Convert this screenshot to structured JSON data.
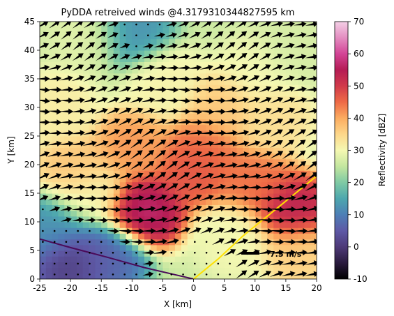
{
  "chart_data": {
    "type": "heatmap",
    "title": "PyDDA retreived winds @4.3179310344827595 km",
    "xlabel": "X [km]",
    "ylabel": "Y [km]",
    "xlim": [
      -25,
      20
    ],
    "ylim": [
      0,
      45
    ],
    "x_ticks": [
      -25,
      -20,
      -15,
      -10,
      -5,
      0,
      5,
      10,
      15,
      20
    ],
    "y_ticks": [
      0,
      5,
      10,
      15,
      20,
      25,
      30,
      35,
      40,
      45
    ],
    "colorbar": {
      "label": "Reflectivity [dBZ]",
      "range": [
        -10,
        70
      ],
      "ticks": [
        -10,
        0,
        10,
        20,
        30,
        40,
        50,
        60,
        70
      ],
      "colormap": "Spectral_r"
    },
    "reflectivity_features": [
      {
        "x": 2,
        "y": 22.5,
        "dbz": 45
      },
      {
        "x": -10,
        "y": 23,
        "dbz": 42
      },
      {
        "x": 10,
        "y": 17,
        "dbz": 45
      },
      {
        "x": -8,
        "y": 12,
        "dbz": 58
      },
      {
        "x": 0,
        "y": 19,
        "dbz": 48
      },
      {
        "x": 16,
        "y": 12,
        "dbz": 55
      },
      {
        "x": -19,
        "y": 19,
        "dbz": 38
      },
      {
        "x": -17,
        "y": 15,
        "dbz": 30
      },
      {
        "x": 17,
        "y": 5,
        "dbz": 36
      },
      {
        "x": -20,
        "y": 3,
        "dbz": 0
      },
      {
        "x": -14,
        "y": 4,
        "dbz": 6
      },
      {
        "x": -17,
        "y": 42,
        "dbz": 28
      },
      {
        "x": -10,
        "y": 43,
        "dbz": 12
      },
      {
        "x": -5,
        "y": 35,
        "dbz": 31
      },
      {
        "x": 10,
        "y": 36,
        "dbz": 30
      },
      {
        "x": 16,
        "y": 40,
        "dbz": 27
      },
      {
        "x": -22,
        "y": 30,
        "dbz": 32
      },
      {
        "x": 5,
        "y": 30,
        "dbz": 37
      },
      {
        "x": 13,
        "y": 28,
        "dbz": 34
      },
      {
        "x": -23,
        "y": 9,
        "dbz": 12
      },
      {
        "x": 7,
        "y": 7,
        "dbz": 30
      }
    ],
    "background_dbz": 26,
    "wind_reference": {
      "label": "7.5 m/s",
      "speed": 7.5
    },
    "lobe_lines": [
      {
        "color": "#4b0b5a",
        "points": [
          [
            0,
            0
          ],
          [
            -8,
            2
          ],
          [
            -14,
            3.8
          ],
          [
            -20,
            5.5
          ],
          [
            -25,
            7
          ]
        ]
      },
      {
        "color": "#ffe000",
        "points": [
          [
            0,
            0
          ],
          [
            4,
            3.5
          ],
          [
            8,
            7.5
          ],
          [
            12,
            11
          ],
          [
            16,
            14.5
          ],
          [
            20,
            18
          ]
        ]
      }
    ]
  }
}
